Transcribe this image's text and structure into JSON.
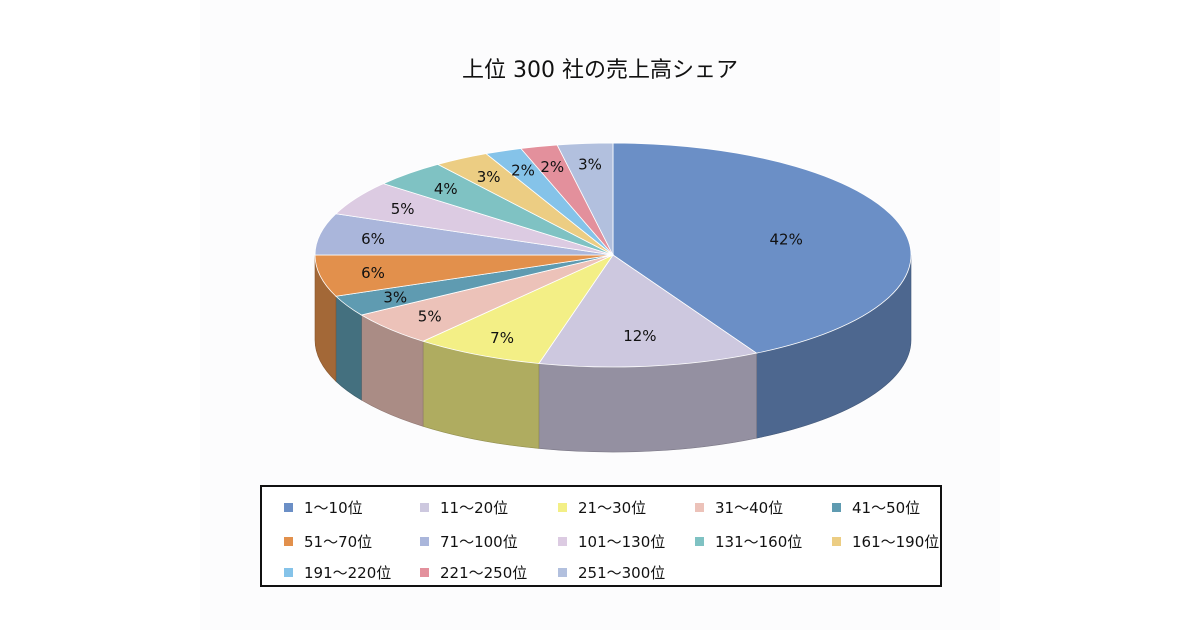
{
  "chart_data": {
    "type": "pie",
    "title": "上位 300 社の売上高シェア",
    "categories": [
      "1〜10位",
      "11〜20位",
      "21〜30位",
      "31〜40位",
      "41〜50位",
      "51〜70位",
      "71〜100位",
      "101〜130位",
      "131〜160位",
      "161〜190位",
      "191〜220位",
      "221〜250位",
      "251〜300位"
    ],
    "values": [
      42,
      12,
      7,
      5,
      3,
      6,
      6,
      5,
      4,
      3,
      2,
      2,
      3
    ],
    "data_labels": [
      "42%",
      "12%",
      "7%",
      "5%",
      "3%",
      "6%",
      "6%",
      "5%",
      "4%",
      "3%",
      "2%",
      "2%",
      "3%"
    ],
    "colors": [
      "#6b8fc6",
      "#cdc8df",
      "#f3ef86",
      "#ecc2b9",
      "#5f9bb1",
      "#e2904c",
      "#aab6db",
      "#dccbe2",
      "#7fc2c3",
      "#eccd83",
      "#85c3e9",
      "#e3909c",
      "#b2c0de"
    ],
    "style": "3d-pie",
    "legend_position": "bottom"
  }
}
